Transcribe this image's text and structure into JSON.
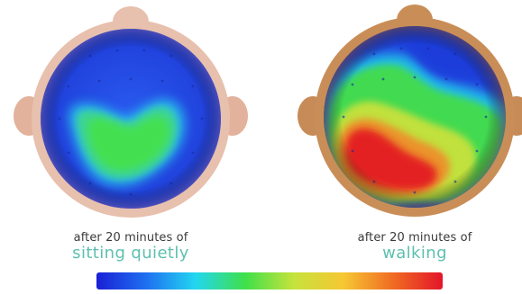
{
  "figure": {
    "panels": [
      {
        "caption_line1": "after 20 minutes of",
        "caption_line2": "sitting quietly",
        "head_color": "#e7c0ae",
        "ear_color": "#e2b29c"
      },
      {
        "caption_line1": "after 20 minutes of",
        "caption_line2": "walking",
        "head_color": "#c98e58",
        "ear_color": "#c78b57"
      }
    ],
    "colors": {
      "caption_accent": "#5dbfb0",
      "caption_text": "#3a3a3a",
      "colorbar_stops": [
        "#1a1fd6",
        "#1e6ff0",
        "#22d6f0",
        "#3fe04a",
        "#c7e23c",
        "#f6c733",
        "#f06b22",
        "#e3152a"
      ]
    }
  }
}
